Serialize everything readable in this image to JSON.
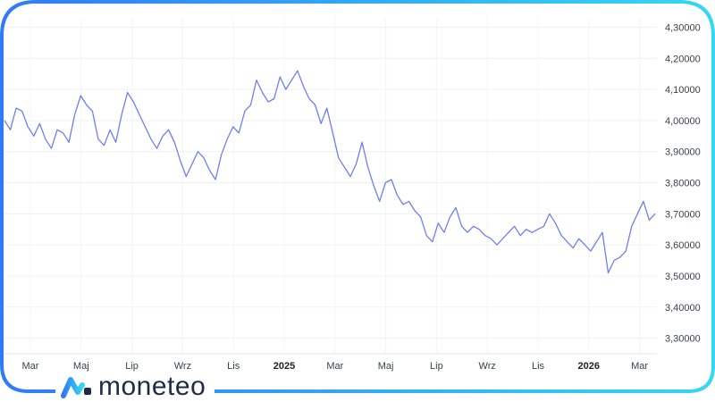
{
  "brand": {
    "name": "moneteo"
  },
  "colors": {
    "line": "#6f7ff0",
    "frame_start": "#2f7bf5",
    "frame_end": "#35d8f2",
    "logo_dark": "#1f2a44"
  },
  "chart_data": {
    "type": "line",
    "title": "",
    "xlabel": "",
    "ylabel": "",
    "ylim": [
      3.25,
      4.33
    ],
    "grid": true,
    "y_ticks": [
      "4,30000",
      "4,20000",
      "4,10000",
      "4,00000",
      "3,90000",
      "3,80000",
      "3,70000",
      "3,60000",
      "3,50000",
      "3,40000",
      "3,30000"
    ],
    "y_tick_values": [
      4.3,
      4.2,
      4.1,
      4.0,
      3.9,
      3.8,
      3.7,
      3.6,
      3.5,
      3.4,
      3.3
    ],
    "x_ticks": [
      {
        "label": "Mar",
        "bold": false
      },
      {
        "label": "Maj",
        "bold": false
      },
      {
        "label": "Lip",
        "bold": false
      },
      {
        "label": "Wrz",
        "bold": false
      },
      {
        "label": "Lis",
        "bold": false
      },
      {
        "label": "2025",
        "bold": true
      },
      {
        "label": "Mar",
        "bold": false
      },
      {
        "label": "Maj",
        "bold": false
      },
      {
        "label": "Lip",
        "bold": false
      },
      {
        "label": "Wrz",
        "bold": false
      },
      {
        "label": "Lis",
        "bold": false
      },
      {
        "label": "2026",
        "bold": true
      },
      {
        "label": "Mar",
        "bold": false
      }
    ],
    "x_tick_index": [
      0,
      2,
      4,
      6,
      8,
      10,
      12,
      14,
      16,
      18,
      20,
      22,
      24
    ],
    "series": [
      {
        "values": [
          4.0,
          3.97,
          4.04,
          4.03,
          3.98,
          3.95,
          3.99,
          3.94,
          3.91,
          3.97,
          3.96,
          3.93,
          4.02,
          4.08,
          4.05,
          4.03,
          3.94,
          3.92,
          3.97,
          3.93,
          4.02,
          4.09,
          4.06,
          4.02,
          3.98,
          3.94,
          3.91,
          3.95,
          3.97,
          3.93,
          3.87,
          3.82,
          3.86,
          3.9,
          3.88,
          3.84,
          3.81,
          3.89,
          3.94,
          3.98,
          3.96,
          4.03,
          4.05,
          4.13,
          4.09,
          4.06,
          4.07,
          4.14,
          4.1,
          4.13,
          4.16,
          4.11,
          4.07,
          4.05,
          3.99,
          4.04,
          3.96,
          3.88,
          3.85,
          3.82,
          3.86,
          3.93,
          3.85,
          3.79,
          3.74,
          3.8,
          3.81,
          3.76,
          3.73,
          3.74,
          3.71,
          3.69,
          3.63,
          3.61,
          3.67,
          3.64,
          3.69,
          3.72,
          3.66,
          3.64,
          3.66,
          3.65,
          3.63,
          3.62,
          3.6,
          3.62,
          3.64,
          3.66,
          3.63,
          3.65,
          3.64,
          3.65,
          3.66,
          3.7,
          3.67,
          3.63,
          3.61,
          3.59,
          3.62,
          3.6,
          3.58,
          3.61,
          3.64,
          3.51,
          3.55,
          3.56,
          3.58,
          3.66,
          3.7,
          3.74,
          3.68,
          3.7
        ]
      }
    ]
  }
}
